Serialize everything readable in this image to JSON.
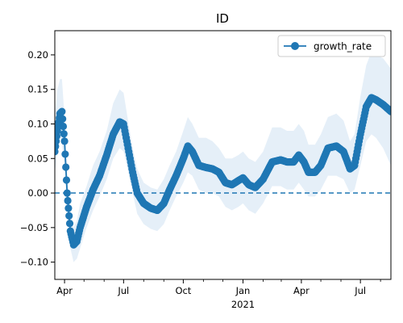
{
  "chart_data": {
    "type": "line",
    "title": "ID",
    "xlabel": "",
    "ylabel": "",
    "x_range": [
      "2020-03-17",
      "2021-08-17"
    ],
    "ylim": [
      -0.125,
      0.235
    ],
    "x_ticks": [
      {
        "date": "2020-04-01",
        "label": "Apr"
      },
      {
        "date": "2020-07-01",
        "label": "Jul"
      },
      {
        "date": "2020-10-01",
        "label": "Oct"
      },
      {
        "date": "2021-01-01",
        "label": "Jan"
      },
      {
        "date": "2021-04-01",
        "label": "Apr"
      },
      {
        "date": "2021-07-01",
        "label": "Jul"
      }
    ],
    "x_minor_ticks": [
      "2020-05-01",
      "2020-06-01",
      "2020-08-01",
      "2020-09-01",
      "2020-11-01",
      "2020-12-01",
      "2021-02-01",
      "2021-03-01",
      "2021-05-01",
      "2021-06-01",
      "2021-08-01"
    ],
    "x_year_label": {
      "date": "2021-01-01",
      "label": "2021"
    },
    "y_ticks": [
      -0.1,
      -0.05,
      0.0,
      0.05,
      0.1,
      0.15,
      0.2
    ],
    "y_tick_labels": [
      "−0.10",
      "−0.05",
      "0.00",
      "0.05",
      "0.10",
      "0.15",
      "0.20"
    ],
    "reference_line": {
      "y": 0.0,
      "style": "dashed",
      "color": "#1f77b4"
    },
    "legend": {
      "placement": "upper right"
    },
    "series": [
      {
        "name": "growth_rate",
        "color": "#1f77b4",
        "marker": "circle",
        "band_color": "#c6dbef",
        "points": [
          {
            "x": "2020-03-17",
            "y": 0.06,
            "lo": 0.03,
            "hi": 0.11
          },
          {
            "x": "2020-03-21",
            "y": 0.09,
            "lo": 0.06,
            "hi": 0.15
          },
          {
            "x": "2020-03-25",
            "y": 0.115,
            "lo": 0.08,
            "hi": 0.165
          },
          {
            "x": "2020-03-28",
            "y": 0.118,
            "lo": 0.07,
            "hi": 0.165
          },
          {
            "x": "2020-04-01",
            "y": 0.075,
            "lo": 0.04,
            "hi": 0.11
          },
          {
            "x": "2020-04-05",
            "y": 0.0,
            "lo": -0.03,
            "hi": 0.03
          },
          {
            "x": "2020-04-10",
            "y": -0.055,
            "lo": -0.08,
            "hi": -0.025
          },
          {
            "x": "2020-04-15",
            "y": -0.075,
            "lo": -0.1,
            "hi": -0.05
          },
          {
            "x": "2020-04-20",
            "y": -0.07,
            "lo": -0.095,
            "hi": -0.04
          },
          {
            "x": "2020-04-25",
            "y": -0.05,
            "lo": -0.08,
            "hi": -0.015
          },
          {
            "x": "2020-05-05",
            "y": -0.02,
            "lo": -0.05,
            "hi": 0.01
          },
          {
            "x": "2020-05-15",
            "y": 0.005,
            "lo": -0.025,
            "hi": 0.04
          },
          {
            "x": "2020-05-25",
            "y": 0.025,
            "lo": -0.005,
            "hi": 0.06
          },
          {
            "x": "2020-06-05",
            "y": 0.055,
            "lo": 0.02,
            "hi": 0.09
          },
          {
            "x": "2020-06-15",
            "y": 0.085,
            "lo": 0.05,
            "hi": 0.13
          },
          {
            "x": "2020-06-25",
            "y": 0.103,
            "lo": 0.065,
            "hi": 0.15
          },
          {
            "x": "2020-07-01",
            "y": 0.1,
            "lo": 0.06,
            "hi": 0.145
          },
          {
            "x": "2020-07-07",
            "y": 0.07,
            "lo": 0.035,
            "hi": 0.11
          },
          {
            "x": "2020-07-15",
            "y": 0.03,
            "lo": 0.0,
            "hi": 0.065
          },
          {
            "x": "2020-07-22",
            "y": 0.0,
            "lo": -0.03,
            "hi": 0.035
          },
          {
            "x": "2020-08-01",
            "y": -0.015,
            "lo": -0.045,
            "hi": 0.015
          },
          {
            "x": "2020-08-12",
            "y": -0.022,
            "lo": -0.052,
            "hi": 0.008
          },
          {
            "x": "2020-08-22",
            "y": -0.025,
            "lo": -0.055,
            "hi": 0.005
          },
          {
            "x": "2020-09-01",
            "y": -0.015,
            "lo": -0.045,
            "hi": 0.02
          },
          {
            "x": "2020-09-10",
            "y": 0.005,
            "lo": -0.025,
            "hi": 0.04
          },
          {
            "x": "2020-09-20",
            "y": 0.025,
            "lo": -0.005,
            "hi": 0.06
          },
          {
            "x": "2020-10-01",
            "y": 0.05,
            "lo": 0.015,
            "hi": 0.09
          },
          {
            "x": "2020-10-08",
            "y": 0.068,
            "lo": 0.03,
            "hi": 0.11
          },
          {
            "x": "2020-10-15",
            "y": 0.06,
            "lo": 0.025,
            "hi": 0.1
          },
          {
            "x": "2020-10-25",
            "y": 0.04,
            "lo": 0.005,
            "hi": 0.08
          },
          {
            "x": "2020-11-05",
            "y": 0.037,
            "lo": 0.0,
            "hi": 0.08
          },
          {
            "x": "2020-11-15",
            "y": 0.035,
            "lo": 0.0,
            "hi": 0.075
          },
          {
            "x": "2020-11-25",
            "y": 0.03,
            "lo": -0.005,
            "hi": 0.065
          },
          {
            "x": "2020-12-05",
            "y": 0.015,
            "lo": -0.02,
            "hi": 0.05
          },
          {
            "x": "2020-12-15",
            "y": 0.012,
            "lo": -0.025,
            "hi": 0.05
          },
          {
            "x": "2020-12-25",
            "y": 0.018,
            "lo": -0.02,
            "hi": 0.055
          },
          {
            "x": "2021-01-01",
            "y": 0.022,
            "lo": -0.015,
            "hi": 0.06
          },
          {
            "x": "2021-01-10",
            "y": 0.012,
            "lo": -0.025,
            "hi": 0.05
          },
          {
            "x": "2021-01-20",
            "y": 0.008,
            "lo": -0.03,
            "hi": 0.045
          },
          {
            "x": "2021-02-01",
            "y": 0.02,
            "lo": -0.015,
            "hi": 0.06
          },
          {
            "x": "2021-02-15",
            "y": 0.045,
            "lo": 0.01,
            "hi": 0.095
          },
          {
            "x": "2021-02-28",
            "y": 0.048,
            "lo": 0.01,
            "hi": 0.095
          },
          {
            "x": "2021-03-10",
            "y": 0.045,
            "lo": 0.005,
            "hi": 0.09
          },
          {
            "x": "2021-03-20",
            "y": 0.045,
            "lo": 0.005,
            "hi": 0.09
          },
          {
            "x": "2021-03-28",
            "y": 0.055,
            "lo": 0.015,
            "hi": 0.1
          },
          {
            "x": "2021-04-05",
            "y": 0.045,
            "lo": 0.005,
            "hi": 0.09
          },
          {
            "x": "2021-04-12",
            "y": 0.03,
            "lo": -0.005,
            "hi": 0.07
          },
          {
            "x": "2021-04-22",
            "y": 0.03,
            "lo": -0.005,
            "hi": 0.07
          },
          {
            "x": "2021-05-01",
            "y": 0.04,
            "lo": 0.005,
            "hi": 0.085
          },
          {
            "x": "2021-05-12",
            "y": 0.065,
            "lo": 0.025,
            "hi": 0.11
          },
          {
            "x": "2021-05-25",
            "y": 0.068,
            "lo": 0.025,
            "hi": 0.115
          },
          {
            "x": "2021-06-05",
            "y": 0.06,
            "lo": 0.02,
            "hi": 0.105
          },
          {
            "x": "2021-06-15",
            "y": 0.035,
            "lo": 0.0,
            "hi": 0.075
          },
          {
            "x": "2021-06-22",
            "y": 0.04,
            "lo": 0.005,
            "hi": 0.085
          },
          {
            "x": "2021-07-01",
            "y": 0.085,
            "lo": 0.04,
            "hi": 0.14
          },
          {
            "x": "2021-07-10",
            "y": 0.125,
            "lo": 0.075,
            "hi": 0.185
          },
          {
            "x": "2021-07-18",
            "y": 0.138,
            "lo": 0.085,
            "hi": 0.205
          },
          {
            "x": "2021-07-25",
            "y": 0.135,
            "lo": 0.08,
            "hi": 0.2
          },
          {
            "x": "2021-08-05",
            "y": 0.128,
            "lo": 0.065,
            "hi": 0.195
          },
          {
            "x": "2021-08-17",
            "y": 0.118,
            "lo": 0.04,
            "hi": 0.18
          }
        ]
      }
    ]
  }
}
